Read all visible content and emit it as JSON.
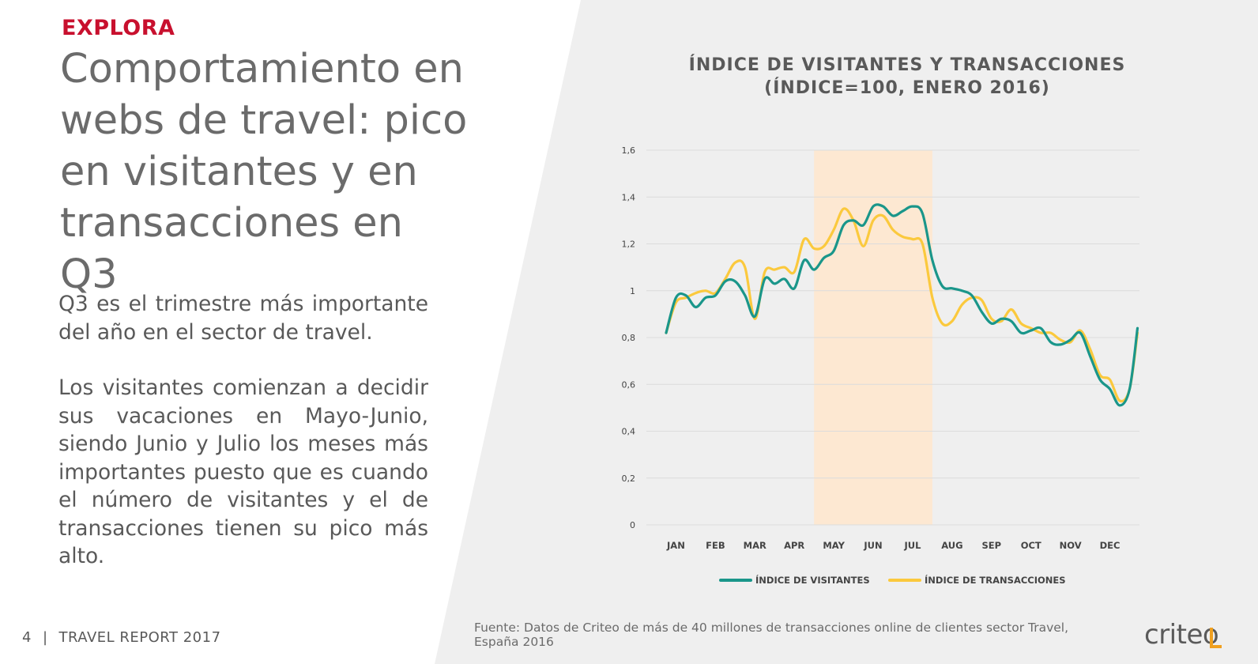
{
  "header": {
    "eyebrow": "EXPLORA",
    "headline": "Comportamiento en webs de travel: pico en visitantes y en transacciones en Q3"
  },
  "body": {
    "paragraph1": "Q3 es el trimestre más importante del año en el sector de travel.",
    "paragraph2": "Los visitantes comienzan a decidir sus vacaciones en Mayo-Junio, siendo Junio y Julio los meses más importantes puesto que es cuando el número de visitantes y el de transacciones tienen su pico más alto."
  },
  "footer": {
    "page_number": "4",
    "separator": "|",
    "report_title": "TRAVEL REPORT 2017",
    "source": "Fuente: Datos de Criteo de más de 40 millones de transacciones online de clientes sector Travel, España 2016",
    "logo_text": "criteo"
  },
  "colors": {
    "brand_red": "#c8102e",
    "visitors": "#1a968a",
    "transactions": "#fbc93d",
    "highlight": "#fde8d2",
    "logo_accent": "#f0a01f"
  },
  "chart_data": {
    "type": "line",
    "title_line1": "ÍNDICE DE VISITANTES Y TRANSACCIONES",
    "title_line2": "(ÍNDICE=100, ENERO 2016)",
    "xlabel": "",
    "ylabel": "",
    "ylim": [
      0,
      1.6
    ],
    "y_ticks": [
      "0",
      "0,2",
      "0,4",
      "0,6",
      "0,8",
      "1",
      "1,2",
      "1,4",
      "1,6"
    ],
    "y_tick_values": [
      0,
      0.2,
      0.4,
      0.6,
      0.8,
      1.0,
      1.2,
      1.4,
      1.6
    ],
    "categories": [
      "JAN",
      "FEB",
      "MAR",
      "APR",
      "MAY",
      "JUN",
      "JUL",
      "AUG",
      "SEP",
      "OCT",
      "NOV",
      "DEC"
    ],
    "grid": "horizontal",
    "legend_position": "bottom",
    "highlight_band": {
      "from_month": 4.25,
      "to_month": 7.25
    },
    "series": [
      {
        "name": "ÍNDICE DE VISITANTES",
        "color": "#1a968a",
        "x": [
          0.5,
          0.75,
          1.0,
          1.25,
          1.5,
          1.75,
          2.0,
          2.25,
          2.5,
          2.75,
          3.0,
          3.25,
          3.5,
          3.75,
          4.0,
          4.25,
          4.5,
          4.75,
          5.0,
          5.25,
          5.5,
          5.75,
          6.0,
          6.25,
          6.5,
          6.75,
          7.0,
          7.25,
          7.5,
          7.75,
          8.0,
          8.25,
          8.5,
          8.75,
          9.0,
          9.25,
          9.5,
          9.75,
          10.0,
          10.25,
          10.5,
          10.75,
          11.0,
          11.25,
          11.5,
          11.75,
          12.0,
          12.25,
          12.45
        ],
        "values": [
          0.82,
          0.97,
          0.98,
          0.93,
          0.97,
          0.98,
          1.04,
          1.04,
          0.98,
          0.89,
          1.05,
          1.03,
          1.05,
          1.01,
          1.13,
          1.09,
          1.14,
          1.17,
          1.28,
          1.3,
          1.28,
          1.36,
          1.36,
          1.32,
          1.34,
          1.36,
          1.33,
          1.13,
          1.02,
          1.01,
          1.0,
          0.98,
          0.91,
          0.86,
          0.88,
          0.87,
          0.82,
          0.83,
          0.84,
          0.78,
          0.77,
          0.79,
          0.82,
          0.72,
          0.62,
          0.58,
          0.51,
          0.58,
          0.84
        ]
      },
      {
        "name": "ÍNDICE DE TRANSACCIONES",
        "color": "#fbc93d",
        "x": [
          0.5,
          0.75,
          1.0,
          1.25,
          1.5,
          1.75,
          2.0,
          2.25,
          2.5,
          2.75,
          3.0,
          3.25,
          3.5,
          3.75,
          4.0,
          4.25,
          4.5,
          4.75,
          5.0,
          5.25,
          5.5,
          5.75,
          6.0,
          6.25,
          6.5,
          6.75,
          7.0,
          7.25,
          7.5,
          7.75,
          8.0,
          8.25,
          8.5,
          8.75,
          9.0,
          9.25,
          9.5,
          9.75,
          10.0,
          10.25,
          10.5,
          10.75,
          11.0,
          11.25,
          11.5,
          11.75,
          12.0,
          12.25,
          12.45
        ],
        "values": [
          0.82,
          0.95,
          0.97,
          0.99,
          1.0,
          0.99,
          1.05,
          1.12,
          1.1,
          0.88,
          1.08,
          1.09,
          1.1,
          1.08,
          1.22,
          1.18,
          1.19,
          1.26,
          1.35,
          1.3,
          1.19,
          1.3,
          1.32,
          1.26,
          1.23,
          1.22,
          1.2,
          0.97,
          0.86,
          0.87,
          0.94,
          0.97,
          0.96,
          0.88,
          0.87,
          0.92,
          0.86,
          0.84,
          0.82,
          0.82,
          0.79,
          0.78,
          0.83,
          0.75,
          0.64,
          0.62,
          0.53,
          0.58,
          0.82
        ]
      }
    ]
  }
}
